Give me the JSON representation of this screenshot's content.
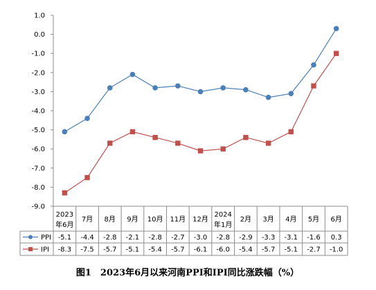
{
  "chart_data": {
    "type": "line",
    "caption": "图1　2023年6月以来河南PPI和IPI同比涨跌幅（%）",
    "categories": [
      [
        "2023",
        "年6月"
      ],
      [
        "7月"
      ],
      [
        "8月"
      ],
      [
        "9月"
      ],
      [
        "10月"
      ],
      [
        "11月"
      ],
      [
        "12月"
      ],
      [
        "2024",
        "年1月"
      ],
      [
        "2月"
      ],
      [
        "3月"
      ],
      [
        "4月"
      ],
      [
        "5月"
      ],
      [
        "6月"
      ]
    ],
    "y_ticks": [
      "1.0",
      "0.0",
      "-1.0",
      "-2.0",
      "-3.0",
      "-4.0",
      "-5.0",
      "-6.0",
      "-7.0",
      "-8.0",
      "-9.0"
    ],
    "ylim": [
      -9,
      1
    ],
    "grid": false,
    "legend": "in data table",
    "series": [
      {
        "name": "PPI",
        "color": "#4a7fb8",
        "marker": "circle",
        "values": [
          -5.1,
          -4.4,
          -2.8,
          -2.1,
          -2.8,
          -2.7,
          -3.0,
          -2.8,
          -2.9,
          -3.3,
          -3.1,
          -1.6,
          0.3
        ],
        "labels": [
          "-5.1",
          "-4.4",
          "-2.8",
          "-2.1",
          "-2.8",
          "-2.7",
          "-3.0",
          "-2.8",
          "-2.9",
          "-3.3",
          "-3.1",
          "-1.6",
          "0.3"
        ]
      },
      {
        "name": "IPI",
        "color": "#bf504d",
        "marker": "square",
        "values": [
          -8.3,
          -7.5,
          -5.7,
          -5.1,
          -5.4,
          -5.7,
          -6.1,
          -6.0,
          -5.4,
          -5.7,
          -5.1,
          -2.7,
          -1.0
        ],
        "labels": [
          "-8.3",
          "-7.5",
          "-5.7",
          "-5.1",
          "-5.4",
          "-5.7",
          "-6.1",
          "-6.0",
          "-5.4",
          "-5.7",
          "-5.1",
          "-2.7",
          "-1.0"
        ]
      }
    ]
  }
}
